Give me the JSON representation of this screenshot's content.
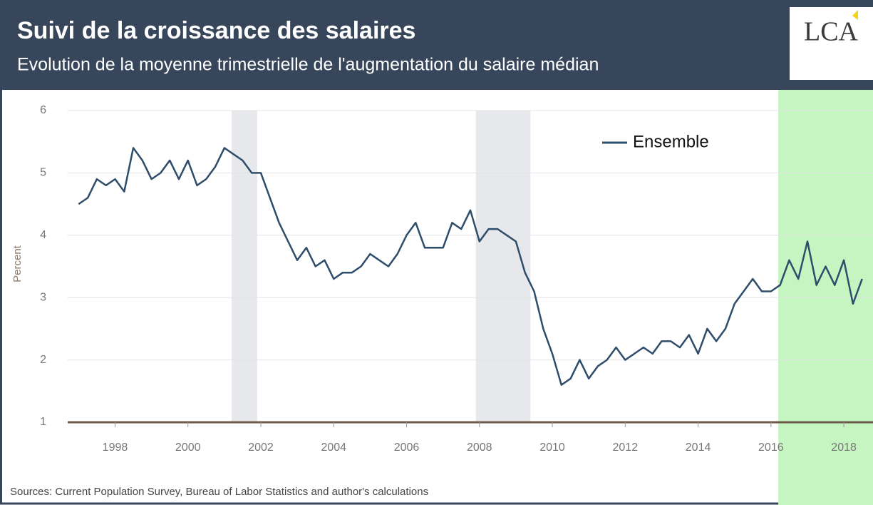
{
  "chart_data": {
    "type": "line",
    "title": "Suivi de la croissance des salaires",
    "subtitle": "Evolution de la moyenne trimestrielle de l'augmentation du salaire médian",
    "logo": "LCA",
    "ylabel": "Percent",
    "source": "Sources: Current Population Survey, Bureau of Labor Statistics and author's calculations",
    "x": [
      1997,
      1997.25,
      1997.5,
      1997.75,
      1998,
      1998.25,
      1998.5,
      1998.75,
      1999,
      1999.25,
      1999.5,
      1999.75,
      2000,
      2000.25,
      2000.5,
      2000.75,
      2001,
      2001.25,
      2001.5,
      2001.75,
      2002,
      2002.25,
      2002.5,
      2002.75,
      2003,
      2003.25,
      2003.5,
      2003.75,
      2004,
      2004.25,
      2004.5,
      2004.75,
      2005,
      2005.25,
      2005.5,
      2005.75,
      2006,
      2006.25,
      2006.5,
      2006.75,
      2007,
      2007.25,
      2007.5,
      2007.75,
      2008,
      2008.25,
      2008.5,
      2008.75,
      2009,
      2009.25,
      2009.5,
      2009.75,
      2010,
      2010.25,
      2010.5,
      2010.75,
      2011,
      2011.25,
      2011.5,
      2011.75,
      2012,
      2012.25,
      2012.5,
      2012.75,
      2013,
      2013.25,
      2013.5,
      2013.75,
      2014,
      2014.25,
      2014.5,
      2014.75,
      2015,
      2015.25,
      2015.5,
      2015.75,
      2016,
      2016.25,
      2016.5,
      2016.75,
      2017,
      2017.25,
      2017.5,
      2017.75,
      2018,
      2018.25,
      2018.5
    ],
    "series": [
      {
        "name": "Ensemble",
        "color": "#2e4d6b",
        "values": [
          4.5,
          4.6,
          4.9,
          4.8,
          4.9,
          4.7,
          5.4,
          5.2,
          4.9,
          5.0,
          5.2,
          4.9,
          5.2,
          4.8,
          4.9,
          5.1,
          5.4,
          5.3,
          5.2,
          5.0,
          5.0,
          4.6,
          4.2,
          3.9,
          3.6,
          3.8,
          3.5,
          3.6,
          3.3,
          3.4,
          3.4,
          3.5,
          3.7,
          3.6,
          3.5,
          3.7,
          4.0,
          4.2,
          3.8,
          3.8,
          3.8,
          4.2,
          4.1,
          4.4,
          3.9,
          4.1,
          4.1,
          4.0,
          3.9,
          3.4,
          3.1,
          2.5,
          2.1,
          1.6,
          1.7,
          2.0,
          1.7,
          1.9,
          2.0,
          2.2,
          2.0,
          2.1,
          2.2,
          2.1,
          2.3,
          2.3,
          2.2,
          2.4,
          2.1,
          2.5,
          2.3,
          2.5,
          2.9,
          3.1,
          3.3,
          3.1,
          3.1,
          3.2,
          3.6,
          3.3,
          3.9,
          3.2,
          3.5,
          3.2,
          3.6,
          2.9,
          3.3
        ]
      }
    ],
    "recessions": [
      [
        2001.2,
        2001.9
      ],
      [
        2007.9,
        2009.4
      ]
    ],
    "highlight": [
      2016.2,
      2018.8
    ],
    "xlim": [
      1996.7,
      2018.8
    ],
    "xticks": [
      1998,
      2000,
      2002,
      2004,
      2006,
      2008,
      2010,
      2012,
      2014,
      2016,
      2018
    ],
    "ylim": [
      1,
      6
    ],
    "yticks": [
      1,
      2,
      3,
      4,
      5,
      6
    ],
    "grid": true,
    "legend": "top-right"
  }
}
